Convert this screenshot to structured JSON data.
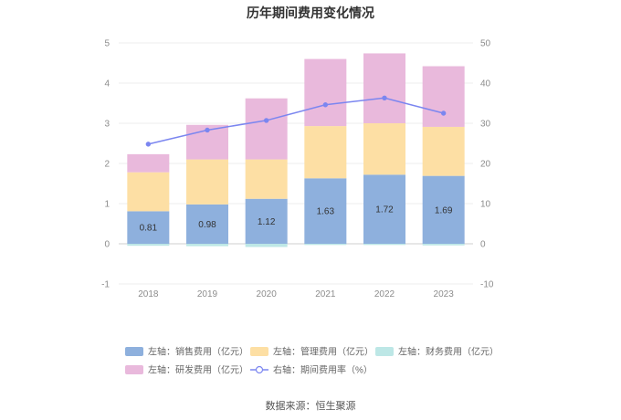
{
  "chart_data": {
    "type": "bar",
    "title": "历年期间费用变化情况",
    "categories": [
      "2018",
      "2019",
      "2020",
      "2021",
      "2022",
      "2023"
    ],
    "left_axis": {
      "ylim": [
        -1,
        5
      ],
      "ticks": [
        -1,
        0,
        1,
        2,
        3,
        4,
        5
      ]
    },
    "right_axis": {
      "ylim": [
        -10,
        50
      ],
      "ticks": [
        -10,
        0,
        10,
        20,
        30,
        40,
        50
      ]
    },
    "series": [
      {
        "name": "左轴：销售费用（亿元）",
        "axis": "left",
        "kind": "stacked-bar",
        "color": "#8eb0dd",
        "values": [
          0.81,
          0.98,
          1.12,
          1.63,
          1.72,
          1.69
        ],
        "show_labels": true
      },
      {
        "name": "左轴：管理费用（亿元）",
        "axis": "left",
        "kind": "stacked-bar",
        "color": "#fddfa4",
        "values": [
          0.97,
          1.12,
          0.98,
          1.3,
          1.28,
          1.22
        ],
        "show_labels": false
      },
      {
        "name": "左轴：财务费用（亿元）",
        "axis": "left",
        "kind": "stacked-bar",
        "color": "#bde7e6",
        "values": [
          -0.05,
          -0.06,
          -0.08,
          -0.03,
          -0.03,
          -0.04
        ],
        "show_labels": false
      },
      {
        "name": "左轴：研发费用（亿元）",
        "axis": "left",
        "kind": "stacked-bar",
        "color": "#e9b9dc",
        "values": [
          0.45,
          0.86,
          1.52,
          1.67,
          1.74,
          1.51
        ],
        "show_labels": false
      },
      {
        "name": "右轴：期间费用率（%）",
        "axis": "right",
        "kind": "line",
        "color": "#7b86f0",
        "values": [
          24.8,
          28.3,
          30.7,
          34.6,
          36.3,
          32.5
        ],
        "show_labels": false
      }
    ],
    "source": "数据来源：恒生聚源"
  }
}
